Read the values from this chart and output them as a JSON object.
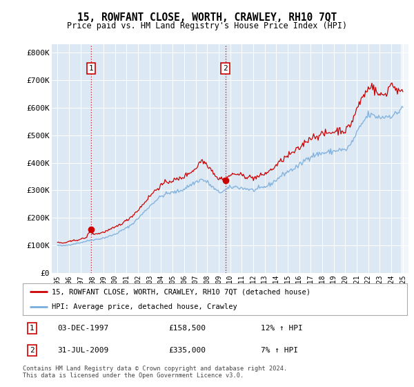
{
  "title": "15, ROWFANT CLOSE, WORTH, CRAWLEY, RH10 7QT",
  "subtitle": "Price paid vs. HM Land Registry's House Price Index (HPI)",
  "plot_bg_color_left": "#dce9f5",
  "plot_bg_color_right": "#ffffff",
  "red_line_label": "15, ROWFANT CLOSE, WORTH, CRAWLEY, RH10 7QT (detached house)",
  "blue_line_label": "HPI: Average price, detached house, Crawley",
  "transaction1_date": "03-DEC-1997",
  "transaction1_price": "£158,500",
  "transaction1_hpi": "12% ↑ HPI",
  "transaction2_date": "31-JUL-2009",
  "transaction2_price": "£335,000",
  "transaction2_hpi": "7% ↑ HPI",
  "footnote": "Contains HM Land Registry data © Crown copyright and database right 2024.\nThis data is licensed under the Open Government Licence v3.0.",
  "ylim_low": 0,
  "ylim_high": 830000,
  "yticks": [
    0,
    100000,
    200000,
    300000,
    400000,
    500000,
    600000,
    700000,
    800000
  ],
  "ytick_labels": [
    "£0",
    "£100K",
    "£200K",
    "£300K",
    "£400K",
    "£500K",
    "£600K",
    "£700K",
    "£800K"
  ],
  "red_color": "#cc0000",
  "blue_color": "#7aaddb",
  "dot1_year": 1997.92,
  "dot1_y": 158500,
  "dot2_year": 2009.58,
  "dot2_y": 335000,
  "x_start": 1995.0,
  "x_end": 2025.5,
  "xtick_years": [
    1995,
    1996,
    1997,
    1998,
    1999,
    2000,
    2001,
    2002,
    2003,
    2004,
    2005,
    2006,
    2007,
    2008,
    2009,
    2010,
    2011,
    2012,
    2013,
    2014,
    2015,
    2016,
    2017,
    2018,
    2019,
    2020,
    2021,
    2022,
    2023,
    2024,
    2025
  ]
}
